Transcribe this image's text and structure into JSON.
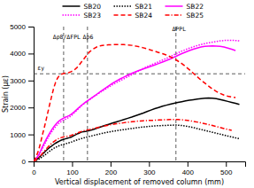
{
  "chart_data": {
    "type": "line",
    "xlabel": "Vertical displacement of removed column (mm)",
    "ylabel": "Strain (με)",
    "xlim": [
      0,
      550
    ],
    "ylim": [
      0,
      5000
    ],
    "xticks": [
      0,
      100,
      200,
      300,
      400,
      500
    ],
    "yticks": [
      0,
      1000,
      2000,
      3000,
      4000,
      5000
    ],
    "hlines": [
      3250
    ],
    "vlines": [
      78,
      140,
      370
    ],
    "annotations": [
      {
        "text": "Δp8/ΔFPL",
        "x": 50,
        "y": 4550
      },
      {
        "text": "Δp6",
        "x": 128,
        "y": 4550
      },
      {
        "text": "ΔPPL",
        "x": 360,
        "y": 4820
      },
      {
        "text": "εy",
        "x": 10,
        "y": 3380
      }
    ],
    "legend": "top",
    "series": [
      {
        "name": "SB20",
        "color": "#000000",
        "line_style": "solid",
        "x": [
          0,
          3,
          6,
          10,
          14,
          18,
          22,
          27,
          32,
          37,
          42,
          47,
          52,
          57,
          62,
          67,
          72,
          77,
          82,
          87,
          92,
          97,
          105,
          115,
          125,
          135,
          145,
          155,
          165,
          175,
          185,
          195,
          205,
          215,
          225,
          235,
          245,
          255,
          265,
          275,
          285,
          295,
          305,
          315,
          325,
          335,
          345,
          355,
          365,
          375,
          385,
          395,
          405,
          415,
          425,
          435,
          445,
          455,
          465,
          475,
          485,
          495,
          505,
          515,
          525,
          535
        ],
        "values": [
          0,
          25,
          55,
          95,
          145,
          195,
          255,
          325,
          395,
          460,
          520,
          570,
          625,
          675,
          715,
          755,
          790,
          815,
          835,
          855,
          875,
          895,
          960,
          1030,
          1090,
          1110,
          1140,
          1185,
          1235,
          1285,
          1330,
          1375,
          1420,
          1465,
          1510,
          1555,
          1600,
          1645,
          1695,
          1745,
          1795,
          1850,
          1905,
          1955,
          2000,
          2045,
          2085,
          2120,
          2155,
          2185,
          2215,
          2245,
          2270,
          2290,
          2310,
          2330,
          2345,
          2350,
          2345,
          2330,
          2295,
          2260,
          2225,
          2190,
          2155,
          2115
        ]
      },
      {
        "name": "SB21",
        "color": "#000000",
        "line_style": "dotted",
        "x": [
          0,
          3,
          6,
          10,
          14,
          18,
          22,
          27,
          32,
          37,
          42,
          47,
          52,
          57,
          62,
          67,
          72,
          77,
          82,
          87,
          92,
          97,
          105,
          115,
          125,
          135,
          145,
          155,
          165,
          175,
          185,
          195,
          205,
          215,
          225,
          235,
          245,
          255,
          265,
          275,
          285,
          295,
          305,
          315,
          325,
          335,
          345,
          355,
          365,
          375,
          385,
          395,
          405,
          415,
          425,
          435,
          445,
          455,
          465,
          475,
          485,
          495,
          505,
          515,
          525,
          535
        ],
        "values": [
          0,
          15,
          30,
          55,
          85,
          120,
          165,
          215,
          270,
          330,
          385,
          435,
          480,
          520,
          555,
          585,
          610,
          630,
          650,
          670,
          690,
          710,
          755,
          805,
          850,
          890,
          925,
          960,
          995,
          1030,
          1060,
          1090,
          1115,
          1140,
          1160,
          1180,
          1200,
          1220,
          1240,
          1260,
          1275,
          1290,
          1305,
          1315,
          1325,
          1330,
          1335,
          1340,
          1345,
          1345,
          1330,
          1310,
          1285,
          1255,
          1220,
          1185,
          1150,
          1115,
          1080,
          1045,
          1010,
          975,
          940,
          910,
          875,
          840
        ]
      },
      {
        "name": "SB22",
        "color": "#ff00ff",
        "line_style": "solid",
        "x": [
          0,
          3,
          6,
          10,
          14,
          18,
          22,
          27,
          32,
          37,
          42,
          47,
          52,
          57,
          62,
          67,
          72,
          77,
          82,
          87,
          92,
          97,
          105,
          115,
          125,
          135,
          145,
          155,
          165,
          175,
          185,
          195,
          205,
          215,
          225,
          235,
          245,
          255,
          265,
          275,
          285,
          295,
          305,
          315,
          325,
          335,
          345,
          355,
          365,
          375,
          385,
          395,
          405,
          415,
          425,
          435,
          445,
          455,
          465,
          475,
          485,
          495,
          505,
          515,
          525
        ],
        "values": [
          0,
          45,
          100,
          175,
          270,
          385,
          520,
          660,
          800,
          935,
          1060,
          1170,
          1275,
          1365,
          1445,
          1510,
          1560,
          1600,
          1635,
          1665,
          1700,
          1740,
          1830,
          1960,
          2090,
          2200,
          2300,
          2400,
          2500,
          2600,
          2700,
          2800,
          2895,
          2980,
          3060,
          3130,
          3200,
          3265,
          3325,
          3380,
          3430,
          3480,
          3530,
          3580,
          3630,
          3685,
          3740,
          3800,
          3865,
          3930,
          3995,
          4055,
          4110,
          4160,
          4205,
          4240,
          4265,
          4280,
          4285,
          4280,
          4265,
          4240,
          4205,
          4160,
          4110
        ]
      },
      {
        "name": "SB23",
        "color": "#ff00ff",
        "line_style": "dotted",
        "x": [
          0,
          3,
          6,
          10,
          14,
          18,
          22,
          27,
          32,
          37,
          42,
          47,
          52,
          57,
          62,
          67,
          72,
          77,
          82,
          87,
          92,
          97,
          105,
          115,
          125,
          135,
          145,
          155,
          165,
          175,
          185,
          195,
          205,
          215,
          225,
          235,
          245,
          255,
          265,
          275,
          285,
          295,
          305,
          315,
          325,
          335,
          345,
          355,
          365,
          375,
          385,
          395,
          405,
          415,
          425,
          435,
          445,
          455,
          465,
          475,
          485,
          495,
          505,
          515,
          525,
          535
        ],
        "values": [
          0,
          35,
          80,
          145,
          225,
          330,
          455,
          590,
          730,
          865,
          990,
          1095,
          1195,
          1285,
          1365,
          1430,
          1480,
          1525,
          1560,
          1595,
          1635,
          1680,
          1790,
          1930,
          2070,
          2180,
          2285,
          2385,
          2480,
          2575,
          2665,
          2755,
          2840,
          2920,
          2995,
          3065,
          3140,
          3215,
          3295,
          3370,
          3445,
          3515,
          3575,
          3635,
          3695,
          3760,
          3820,
          3885,
          3955,
          4025,
          4090,
          4145,
          4200,
          4250,
          4295,
          4335,
          4370,
          4400,
          4425,
          4450,
          4470,
          4485,
          4492,
          4492,
          4485,
          4470
        ]
      },
      {
        "name": "SB24",
        "color": "#ff0000",
        "line_style": "dashed",
        "x": [
          0,
          3,
          6,
          10,
          14,
          18,
          22,
          27,
          32,
          37,
          42,
          47,
          52,
          57,
          62,
          67,
          72,
          77,
          82,
          87,
          92,
          97,
          105,
          115,
          125,
          135,
          145,
          155,
          165,
          175,
          185,
          195,
          205,
          215,
          225,
          235,
          245,
          255,
          265,
          275,
          285,
          295,
          305,
          315,
          325,
          335,
          345,
          355,
          365,
          375,
          385,
          395,
          405,
          415,
          425,
          435,
          445,
          455,
          465,
          475,
          485,
          495,
          505,
          515,
          525
        ],
        "values": [
          0,
          70,
          165,
          300,
          470,
          685,
          940,
          1210,
          1510,
          1820,
          2130,
          2420,
          2710,
          2930,
          3085,
          3185,
          3230,
          3255,
          3270,
          3285,
          3300,
          3325,
          3380,
          3510,
          3700,
          3880,
          4060,
          4170,
          4250,
          4295,
          4315,
          4325,
          4330,
          4335,
          4335,
          4330,
          4320,
          4305,
          4280,
          4250,
          4215,
          4175,
          4130,
          4085,
          4040,
          3995,
          3945,
          3885,
          3810,
          3725,
          3630,
          3520,
          3400,
          3275,
          3145,
          3020,
          2905,
          2795,
          2685,
          2595,
          2520,
          2460,
          2415,
          2385,
          2370
        ]
      },
      {
        "name": "SB25",
        "color": "#ff0000",
        "line_style": "dashdot",
        "x": [
          0,
          3,
          6,
          10,
          14,
          18,
          22,
          27,
          32,
          37,
          42,
          47,
          52,
          57,
          62,
          67,
          72,
          77,
          82,
          87,
          92,
          97,
          105,
          115,
          125,
          135,
          145,
          155,
          165,
          175,
          185,
          195,
          205,
          215,
          225,
          235,
          245,
          255,
          265,
          275,
          285,
          295,
          305,
          315,
          325,
          335,
          345,
          355,
          365,
          375,
          385,
          395,
          405,
          415,
          425,
          435,
          445,
          455,
          465,
          475,
          485,
          495,
          505,
          515
        ],
        "values": [
          0,
          25,
          55,
          95,
          150,
          210,
          280,
          360,
          445,
          530,
          605,
          670,
          730,
          780,
          825,
          860,
          885,
          905,
          920,
          930,
          945,
          960,
          1000,
          1060,
          1115,
          1150,
          1180,
          1215,
          1250,
          1285,
          1315,
          1345,
          1370,
          1395,
          1415,
          1435,
          1455,
          1470,
          1485,
          1498,
          1508,
          1515,
          1522,
          1528,
          1535,
          1542,
          1548,
          1552,
          1555,
          1553,
          1545,
          1530,
          1510,
          1485,
          1460,
          1430,
          1400,
          1365,
          1330,
          1295,
          1258,
          1220,
          1185,
          1150
        ]
      }
    ]
  }
}
